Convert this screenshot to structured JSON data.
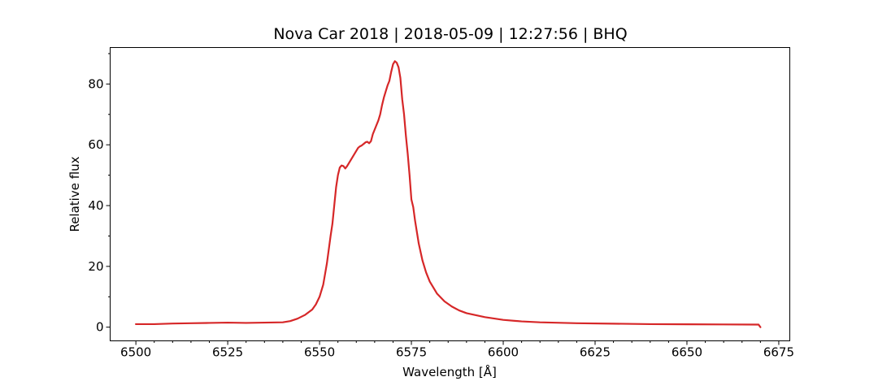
{
  "chart_data": {
    "type": "line",
    "title": "Nova Car 2018 | 2018-05-09 | 12:27:56 | BHQ",
    "xlabel": "Wavelength [Å]",
    "ylabel": "Relative flux",
    "xlim": [
      6493,
      6678
    ],
    "ylim": [
      -4.5,
      92
    ],
    "x_major_ticks": [
      6500,
      6525,
      6550,
      6575,
      6600,
      6625,
      6650,
      6675
    ],
    "x_minor_ticks": [
      6505,
      6510,
      6515,
      6520,
      6530,
      6535,
      6540,
      6545,
      6555,
      6560,
      6565,
      6570,
      6580,
      6585,
      6590,
      6595,
      6605,
      6610,
      6615,
      6620,
      6630,
      6635,
      6640,
      6645,
      6655,
      6660,
      6665,
      6670
    ],
    "y_major_ticks": [
      0,
      20,
      40,
      60,
      80
    ],
    "y_minor_ticks": [
      10,
      30,
      50,
      70,
      90
    ],
    "x_tick_labels": [
      "6500",
      "6525",
      "6550",
      "6575",
      "6600",
      "6625",
      "6650",
      "6675"
    ],
    "y_tick_labels": [
      "0",
      "20",
      "40",
      "60",
      "80"
    ],
    "grid": false,
    "colors": {
      "line": "#d62728"
    },
    "series": [
      {
        "x": [
          6500,
          6505,
          6510,
          6515,
          6520,
          6525,
          6530,
          6535,
          6540,
          6542,
          6544,
          6546,
          6548,
          6549,
          6550,
          6551,
          6552,
          6553,
          6553.5,
          6554,
          6554.5,
          6555,
          6555.5,
          6556,
          6556.5,
          6557,
          6557.5,
          6558,
          6558.5,
          6559,
          6559.5,
          6560,
          6560.5,
          6561,
          6561.5,
          6562,
          6562.5,
          6563,
          6563.5,
          6564,
          6564.5,
          6565,
          6565.5,
          6566,
          6566.5,
          6567,
          6567.5,
          6568,
          6568.5,
          6569,
          6569.5,
          6570,
          6570.5,
          6571,
          6571.5,
          6572,
          6572.5,
          6573,
          6573.5,
          6574,
          6574.5,
          6575,
          6575.5,
          6576,
          6577,
          6578,
          6579,
          6580,
          6582,
          6584,
          6586,
          6588,
          6590,
          6595,
          6600,
          6605,
          6610,
          6620,
          6630,
          6640,
          6650,
          6660,
          6669.5,
          6670
        ],
        "y": [
          1.0,
          1.0,
          1.2,
          1.3,
          1.4,
          1.5,
          1.4,
          1.5,
          1.6,
          2.0,
          2.8,
          4.0,
          5.8,
          7.5,
          10.0,
          14.0,
          21.0,
          30.0,
          34.0,
          40.0,
          46.0,
          50.0,
          52.5,
          53.2,
          53.0,
          52.2,
          53.0,
          54.0,
          55.0,
          56.0,
          57.0,
          58.0,
          59.0,
          59.5,
          59.8,
          60.3,
          60.8,
          61.0,
          60.5,
          61.2,
          63.5,
          65.0,
          66.5,
          68.0,
          70.0,
          73.0,
          75.5,
          77.5,
          79.5,
          81.0,
          84.0,
          86.5,
          87.5,
          87.0,
          85.5,
          82.0,
          75.0,
          70.0,
          63.0,
          57.0,
          50.0,
          42.0,
          39.5,
          35.0,
          27.5,
          22.0,
          18.0,
          15.0,
          11.0,
          8.5,
          6.8,
          5.5,
          4.6,
          3.3,
          2.4,
          1.9,
          1.6,
          1.3,
          1.15,
          1.0,
          0.95,
          0.9,
          0.85,
          0.0
        ]
      }
    ]
  }
}
